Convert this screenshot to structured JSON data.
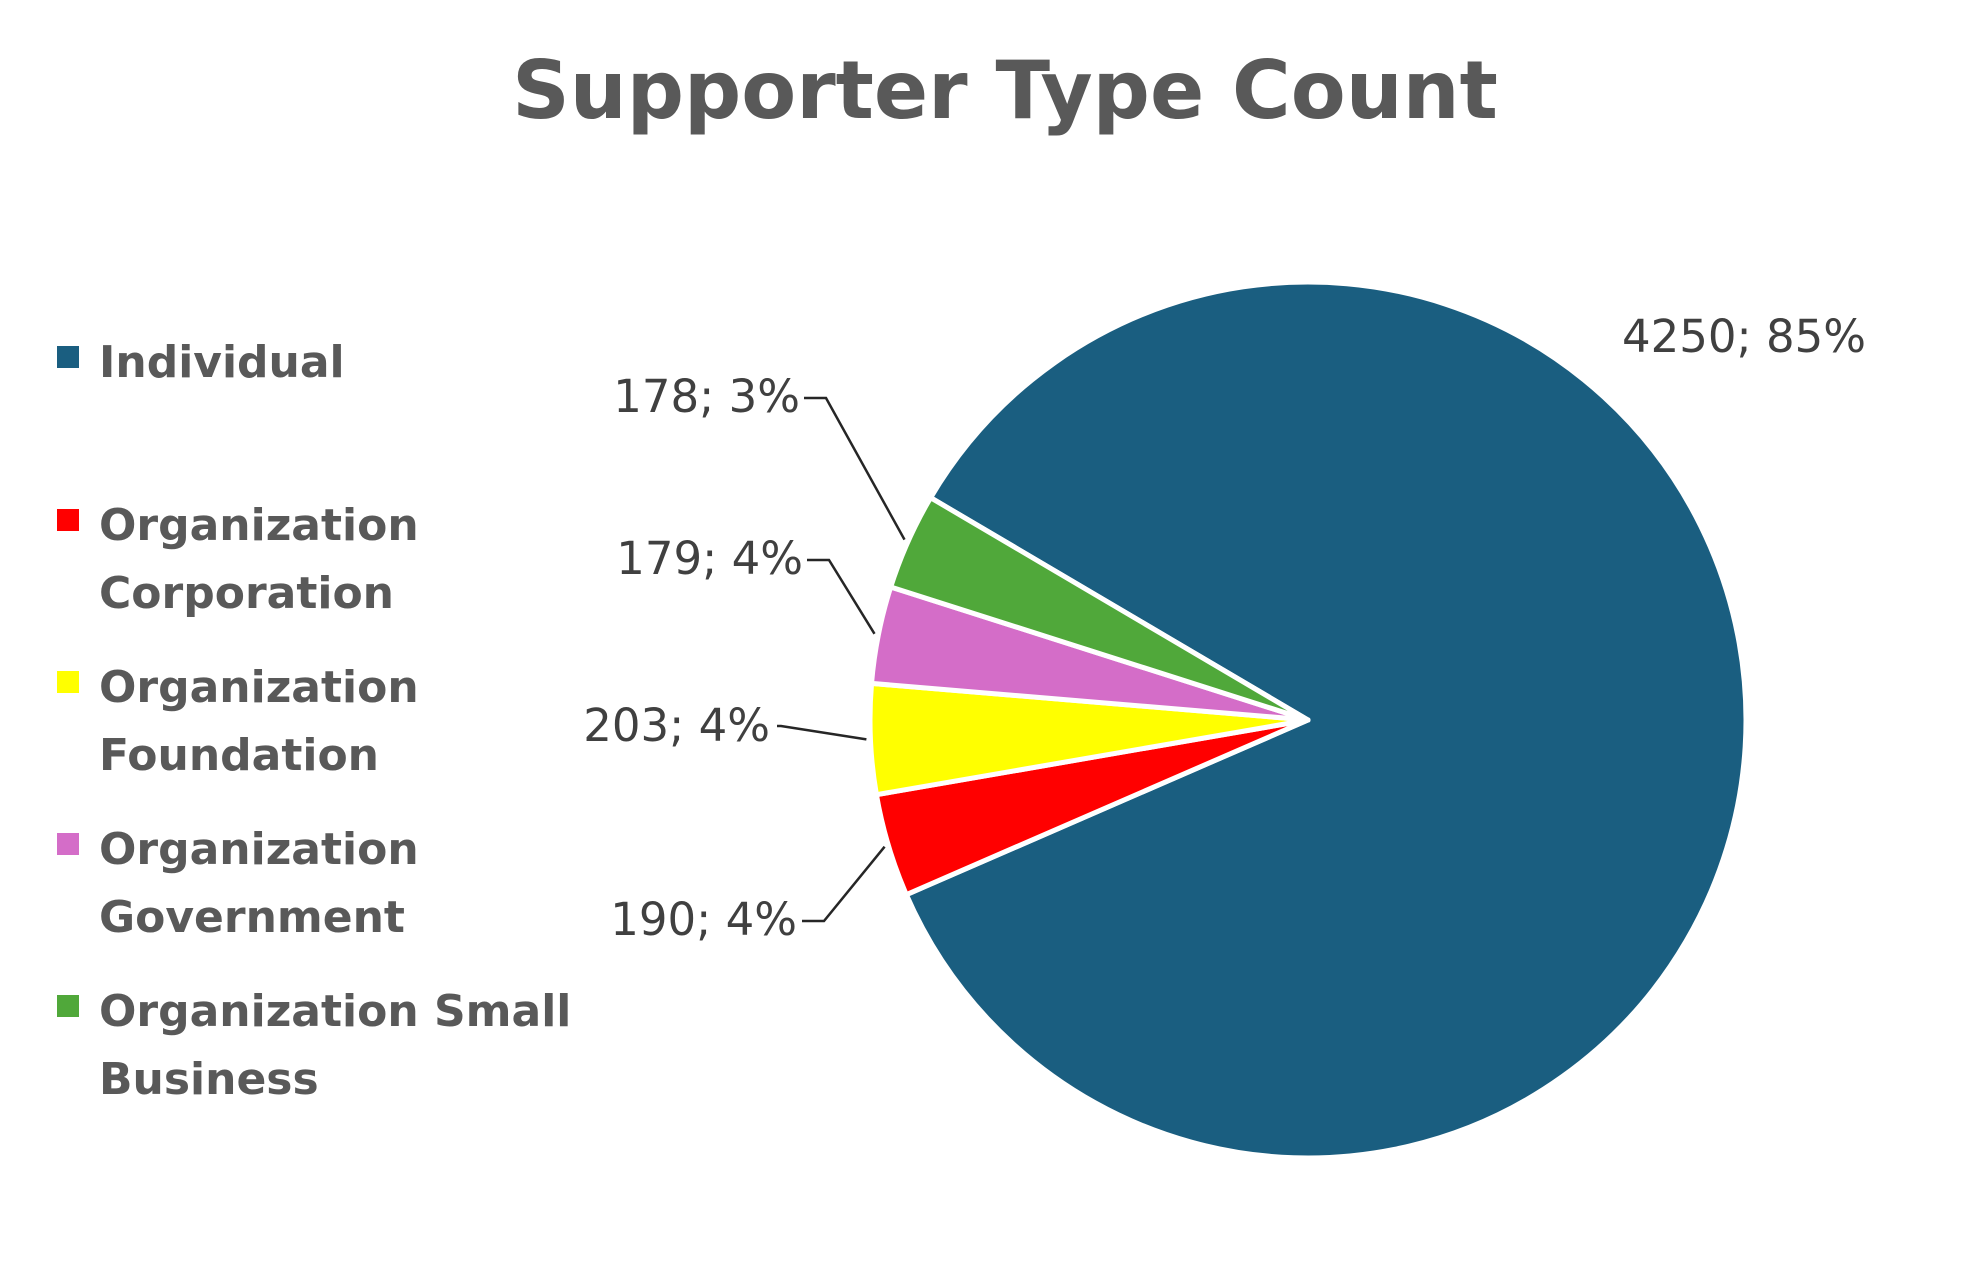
{
  "chart_data": {
    "type": "pie",
    "title": "Supporter Type Count",
    "legend_position": "left",
    "categories": [
      "Individual",
      "Organization Corporation",
      "Organization Foundation",
      "Organization Government",
      "Organization Small Business"
    ],
    "legend_lines": [
      [
        "Individual"
      ],
      [
        "Organization",
        "Corporation"
      ],
      [
        "Organization",
        "Foundation"
      ],
      [
        "Organization",
        "Government"
      ],
      [
        "Organization Small",
        "Business"
      ]
    ],
    "values": [
      4250,
      190,
      203,
      179,
      178
    ],
    "data_labels": [
      "4250; 85%",
      "190; 4%",
      "203; 4%",
      "179; 4%",
      "178; 3%"
    ],
    "colors": [
      "#1A5E80",
      "#FF0000",
      "#FFFF00",
      "#D46DC8",
      "#50A83A"
    ]
  }
}
